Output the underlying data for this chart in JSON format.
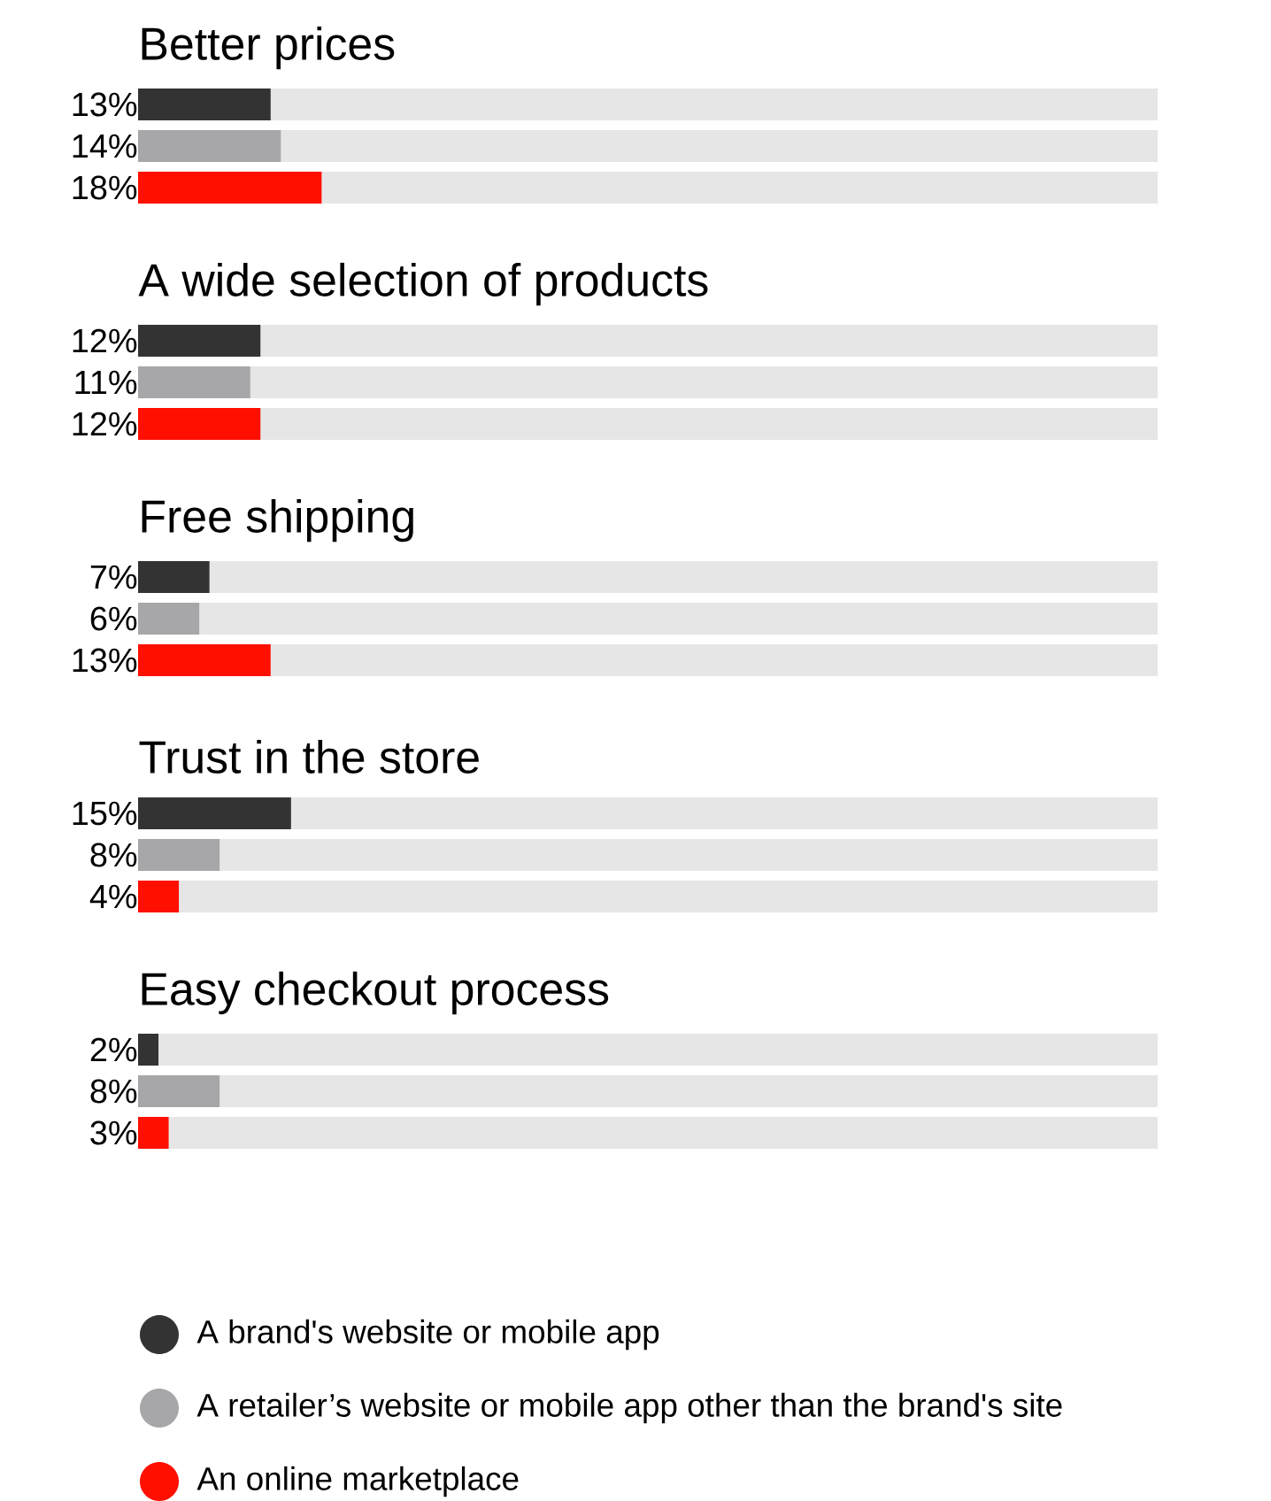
{
  "chart_data": {
    "type": "bar",
    "orientation": "horizontal",
    "categories": [
      "Better prices",
      "A wide selection of products",
      "Free shipping",
      "Trust in the store",
      "Easy checkout process"
    ],
    "xlim": [
      0,
      100
    ],
    "legend": "bottom",
    "series": [
      {
        "name": "A brand's website or mobile app",
        "color": "#333333",
        "values": [
          13,
          12,
          7,
          15,
          2
        ],
        "value_labels": [
          "13%",
          "12%",
          "7%",
          "15%",
          "2%"
        ]
      },
      {
        "name": "A retailer’s website or mobile app other than the brand's site",
        "color": "#a7a7aa",
        "values": [
          14,
          11,
          6,
          8,
          8
        ],
        "value_labels": [
          "14%",
          "11%",
          "6%",
          "8%",
          "8%"
        ]
      },
      {
        "name": "An online marketplace",
        "color": "#ff0f00",
        "values": [
          18,
          12,
          13,
          4,
          3
        ],
        "value_labels": [
          "18%",
          "12%",
          "13%",
          "4%",
          "3%"
        ]
      }
    ]
  }
}
